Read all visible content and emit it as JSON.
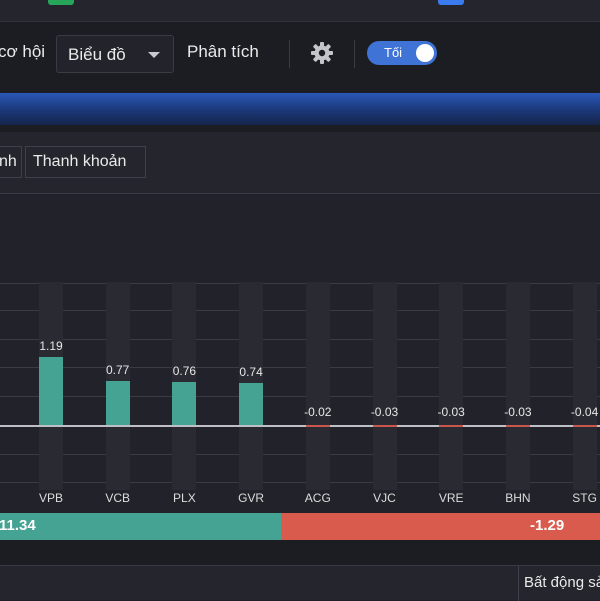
{
  "toolbar": {
    "nav_partial": "cơ hội",
    "select_value": "Biểu đồ",
    "analysis": "Phân tích",
    "theme_toggle_label": "Tối"
  },
  "tabs": [
    {
      "label": "nh"
    },
    {
      "label": "Thanh khoản"
    }
  ],
  "chart_data": {
    "type": "bar",
    "categories": [
      "VPB",
      "VCB",
      "PLX",
      "GVR",
      "ACG",
      "VJC",
      "VRE",
      "BHN",
      "STG"
    ],
    "values": [
      1.19,
      0.77,
      0.76,
      0.74,
      -0.02,
      -0.03,
      -0.03,
      -0.03,
      -0.04
    ],
    "value_labels": [
      "1.19",
      "0.77",
      "0.76",
      "0.74",
      "-0.02",
      "-0.03",
      "-0.03",
      "-0.03",
      "-0.04"
    ],
    "colors": {
      "positive": "#44a393",
      "negative": "#c9564a"
    }
  },
  "summary": {
    "positive_label": "11.34",
    "negative_label": "-1.29"
  },
  "bottom_table": {
    "category_partial": "Bất động sản"
  }
}
